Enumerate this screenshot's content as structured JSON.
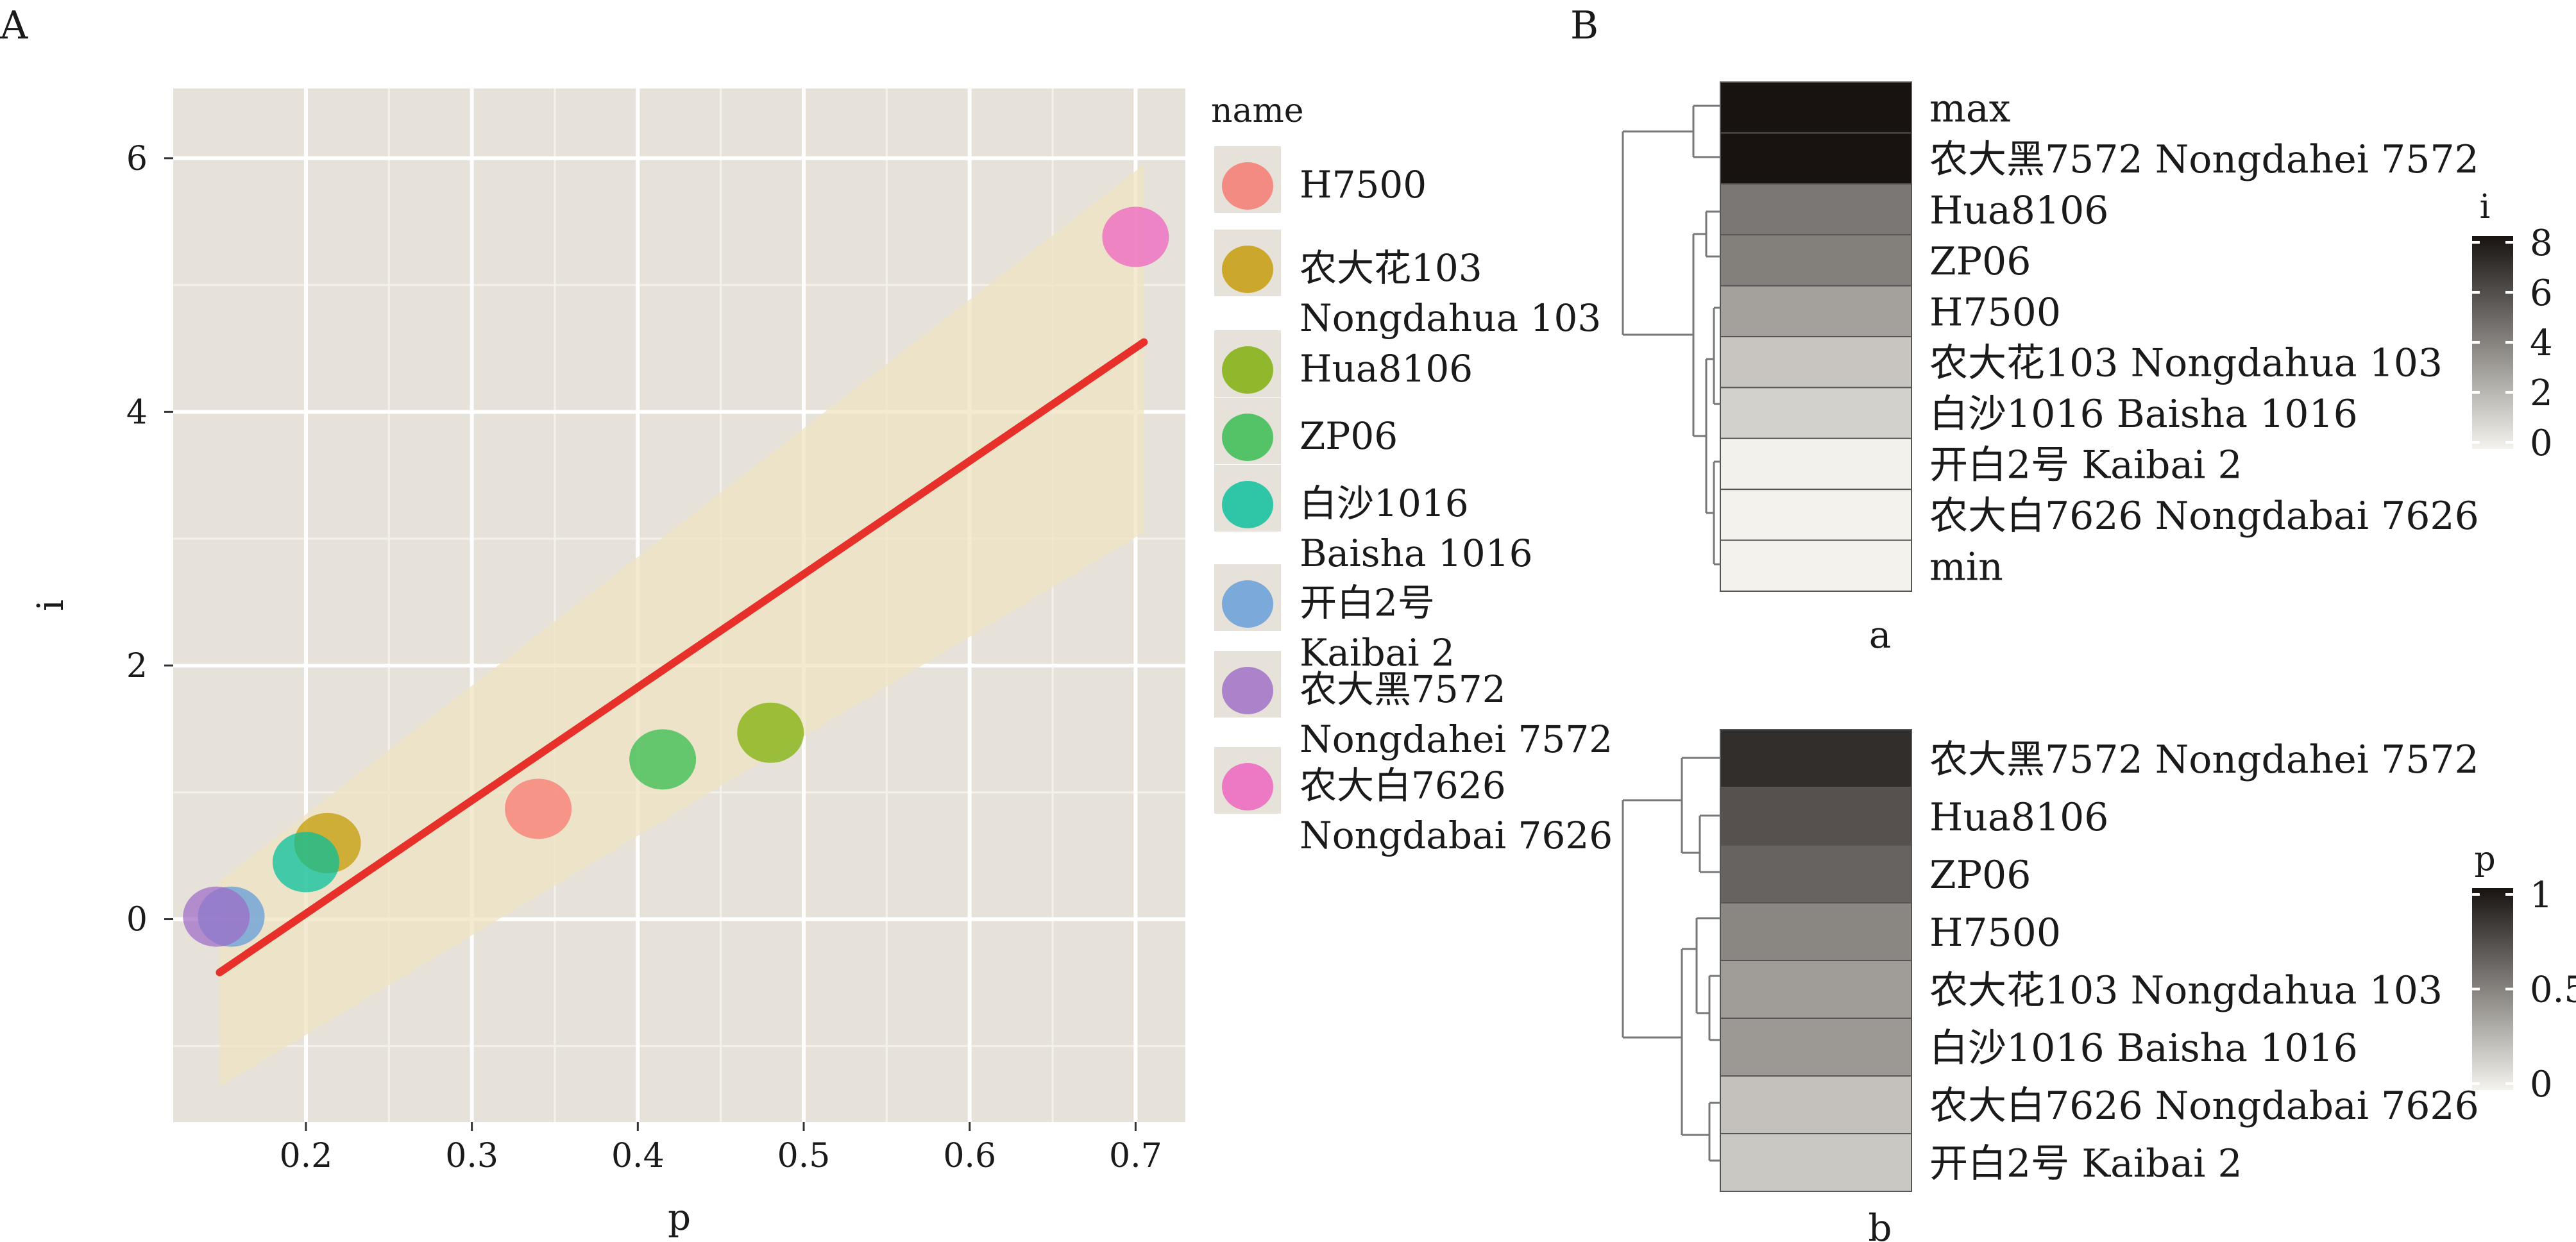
{
  "panels": {
    "a_label": "A",
    "b_label": "B"
  },
  "chart_data": [
    {
      "type": "scatter",
      "xlabel": "p",
      "ylabel": "i",
      "xlim": [
        0.12,
        0.73
      ],
      "ylim": [
        -1.6,
        6.55
      ],
      "xticks": [
        0.2,
        0.3,
        0.4,
        0.5,
        0.6,
        0.7
      ],
      "xtick_labels": [
        "0.2",
        "0.3",
        "0.4",
        "0.5",
        "0.6",
        "0.7"
      ],
      "yticks": [
        0,
        2,
        4,
        6
      ],
      "ytick_labels": [
        "0",
        "2",
        "4",
        "6"
      ],
      "grid": true,
      "legend": {
        "title": "name",
        "placement": "right",
        "entries": [
          {
            "lines": [
              "H7500"
            ],
            "color": "#F8766D"
          },
          {
            "lines": [
              "农大花103",
              "Nongdahua 103"
            ],
            "color": "#C49A00"
          },
          {
            "lines": [
              "Hua8106"
            ],
            "color": "#7CAE00"
          },
          {
            "lines": [
              "ZP06"
            ],
            "color": "#2FBB4A"
          },
          {
            "lines": [
              "白沙1016",
              "Baisha 1016"
            ],
            "color": "#00BF9A"
          },
          {
            "lines": [
              "开白2号",
              "Kaibai 2"
            ],
            "color": "#5F9BD9"
          },
          {
            "lines": [
              "农大黑7572",
              "Nongdahei 7572"
            ],
            "color": "#9E6BC6"
          },
          {
            "lines": [
              "农大白7626",
              "Nongdabai 7626"
            ],
            "color": "#EF5FBF"
          }
        ]
      },
      "points": [
        {
          "name": "H7500",
          "x": 0.34,
          "y": 0.87,
          "color": "#F8766D"
        },
        {
          "name": "农大花103 Nongdahua 103",
          "x": 0.213,
          "y": 0.6,
          "color": "#C49A00"
        },
        {
          "name": "Hua8106",
          "x": 0.48,
          "y": 1.47,
          "color": "#7CAE00"
        },
        {
          "name": "ZP06",
          "x": 0.415,
          "y": 1.26,
          "color": "#2FBB4A"
        },
        {
          "name": "白沙1016 Baisha 1016",
          "x": 0.2,
          "y": 0.45,
          "color": "#00BF9A"
        },
        {
          "name": "开白2号 Kaibai 2",
          "x": 0.155,
          "y": 0.02,
          "color": "#5F9BD9"
        },
        {
          "name": "农大黑7572 Nongdahei 7572",
          "x": 0.146,
          "y": 0.02,
          "color": "#9E6BC6"
        },
        {
          "name": "农大白7626 Nongdabai 7626",
          "x": 0.7,
          "y": 5.38,
          "color": "#EF5FBF"
        }
      ],
      "regression": {
        "x": [
          0.148,
          0.705
        ],
        "y": [
          -0.42,
          4.55
        ],
        "color": "#E8302A"
      },
      "confidence_band": {
        "x": [
          0.148,
          0.705
        ],
        "upper": [
          0.3,
          5.95
        ],
        "lower": [
          -1.32,
          3.05
        ]
      }
    },
    {
      "type": "heatmap",
      "caption": "a",
      "legend_title": "i",
      "scale_range": [
        0,
        8
      ],
      "scale_ticks": [
        "8",
        "6",
        "4",
        "2",
        "0"
      ],
      "rows": [
        {
          "label": "max",
          "value": 8.2
        },
        {
          "label": "农大黑7572 Nongdahei 7572",
          "value": 8.0
        },
        {
          "label": "Hua8106",
          "value": 4.4
        },
        {
          "label": "ZP06",
          "value": 4.1
        },
        {
          "label": "H7500",
          "value": 2.9
        },
        {
          "label": "农大花103  Nongdahua 103",
          "value": 1.6
        },
        {
          "label": "白沙1016  Baisha 1016",
          "value": 1.2
        },
        {
          "label": "开白2号 Kaibai 2",
          "value": 0.02
        },
        {
          "label": "农大白7626 Nongdabai 7626",
          "value": 0.01
        },
        {
          "label": "min",
          "value": 0.0
        }
      ]
    },
    {
      "type": "heatmap",
      "caption": "b",
      "legend_title": "p",
      "scale_range": [
        0,
        1
      ],
      "scale_ticks": [
        "1",
        "0.5",
        "0"
      ],
      "rows": [
        {
          "label": "农大黑7572 Nongdahei 7572",
          "value": 0.88
        },
        {
          "label": "Hua8106",
          "value": 0.72
        },
        {
          "label": "ZP06",
          "value": 0.64
        },
        {
          "label": "H7500",
          "value": 0.48
        },
        {
          "label": "农大花103  Nongdahua 103",
          "value": 0.38
        },
        {
          "label": "白沙1016  Baisha 1016",
          "value": 0.4
        },
        {
          "label": "农大白7626 Nongdabai 7626",
          "value": 0.22
        },
        {
          "label": "开白2号 Kaibai 2",
          "value": 0.19
        }
      ]
    }
  ]
}
